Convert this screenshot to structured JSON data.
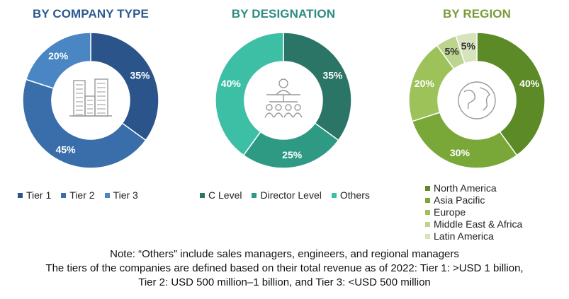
{
  "chart_data": [
    {
      "type": "pie",
      "title": "BY COMPANY TYPE",
      "title_color": "#2c5a8f",
      "categories": [
        "Tier 1",
        "Tier 2",
        "Tier 3"
      ],
      "values": [
        35,
        45,
        20
      ],
      "labels": [
        "35%",
        "45%",
        "20%"
      ],
      "colors": [
        "#2a548a",
        "#3a6eaa",
        "#4a86c4"
      ],
      "legend": "bottom",
      "icon": "buildings-icon"
    },
    {
      "type": "pie",
      "title": "BY DESIGNATION",
      "title_color": "#2e8b7f",
      "categories": [
        "C Level",
        "Director Level",
        "Others"
      ],
      "values": [
        35,
        25,
        40
      ],
      "labels": [
        "35%",
        "25%",
        "40%"
      ],
      "colors": [
        "#2a7566",
        "#2f9a84",
        "#3dbfa6"
      ],
      "legend": "bottom",
      "icon": "org-chart-icon"
    },
    {
      "type": "pie",
      "title": "BY REGION",
      "title_color": "#7a9a3a",
      "categories": [
        "North America",
        "Asia Pacific",
        "Europe",
        "Middle East & Africa",
        "Latin America"
      ],
      "values": [
        40,
        30,
        20,
        5,
        5
      ],
      "labels": [
        "40%",
        "30%",
        "20%",
        "5%",
        "5%"
      ],
      "colors": [
        "#5c8a26",
        "#7aa838",
        "#9dc25a",
        "#bcd48f",
        "#d7e3bd"
      ],
      "legend": "bottom",
      "icon": "globe-icon"
    }
  ],
  "notes": [
    "Note: “Others” include sales managers, engineers, and regional managers",
    "The tiers of the companies are defined based on their total revenue as of 2022: Tier 1: >USD 1 billion,",
    "Tier 2: USD 500 million–1 billion, and Tier 3: <USD 500 million"
  ]
}
